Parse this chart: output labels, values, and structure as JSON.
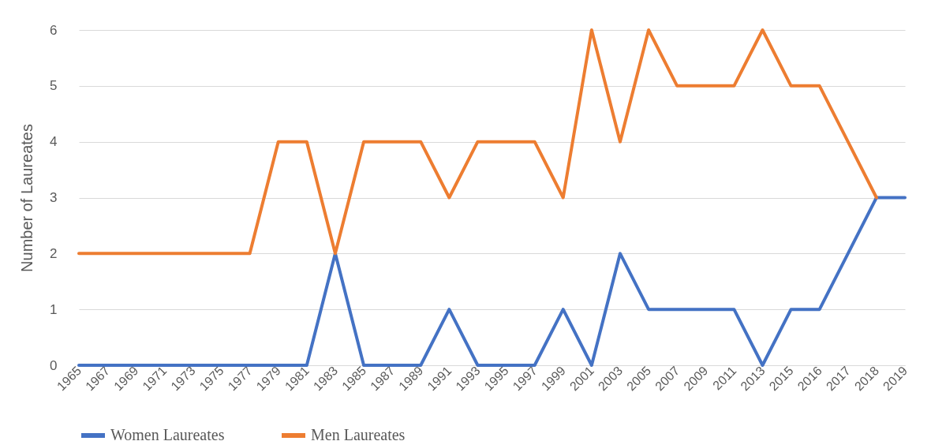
{
  "chart_data": {
    "type": "line",
    "ylabel": "Number of Laureates",
    "categories": [
      "1965",
      "1967",
      "1969",
      "1971",
      "1973",
      "1975",
      "1977",
      "1979",
      "1981",
      "1983",
      "1985",
      "1987",
      "1989",
      "1991",
      "1993",
      "1995",
      "1997",
      "1999",
      "2001",
      "2003",
      "2005",
      "2007",
      "2009",
      "2011",
      "2013",
      "2015",
      "2016",
      "2017",
      "2018",
      "2019"
    ],
    "series": [
      {
        "name": "Women Laureates",
        "color": "#4472c4",
        "values": [
          0,
          0,
          0,
          0,
          0,
          0,
          0,
          0,
          0,
          2,
          0,
          0,
          0,
          1,
          0,
          0,
          0,
          1,
          0,
          2,
          1,
          1,
          1,
          1,
          0,
          1,
          1,
          2,
          3,
          3
        ]
      },
      {
        "name": "Men Laureates",
        "color": "#ed7d31",
        "values": [
          2,
          2,
          2,
          2,
          2,
          2,
          2,
          4,
          4,
          2,
          4,
          4,
          4,
          3,
          4,
          4,
          4,
          3,
          6,
          4,
          6,
          5,
          5,
          5,
          6,
          5,
          5,
          4,
          3,
          null
        ]
      }
    ],
    "ylim": [
      0,
      6
    ],
    "yticks": [
      0,
      1,
      2,
      3,
      4,
      5,
      6
    ],
    "grid": "y",
    "legend": "bottom"
  }
}
